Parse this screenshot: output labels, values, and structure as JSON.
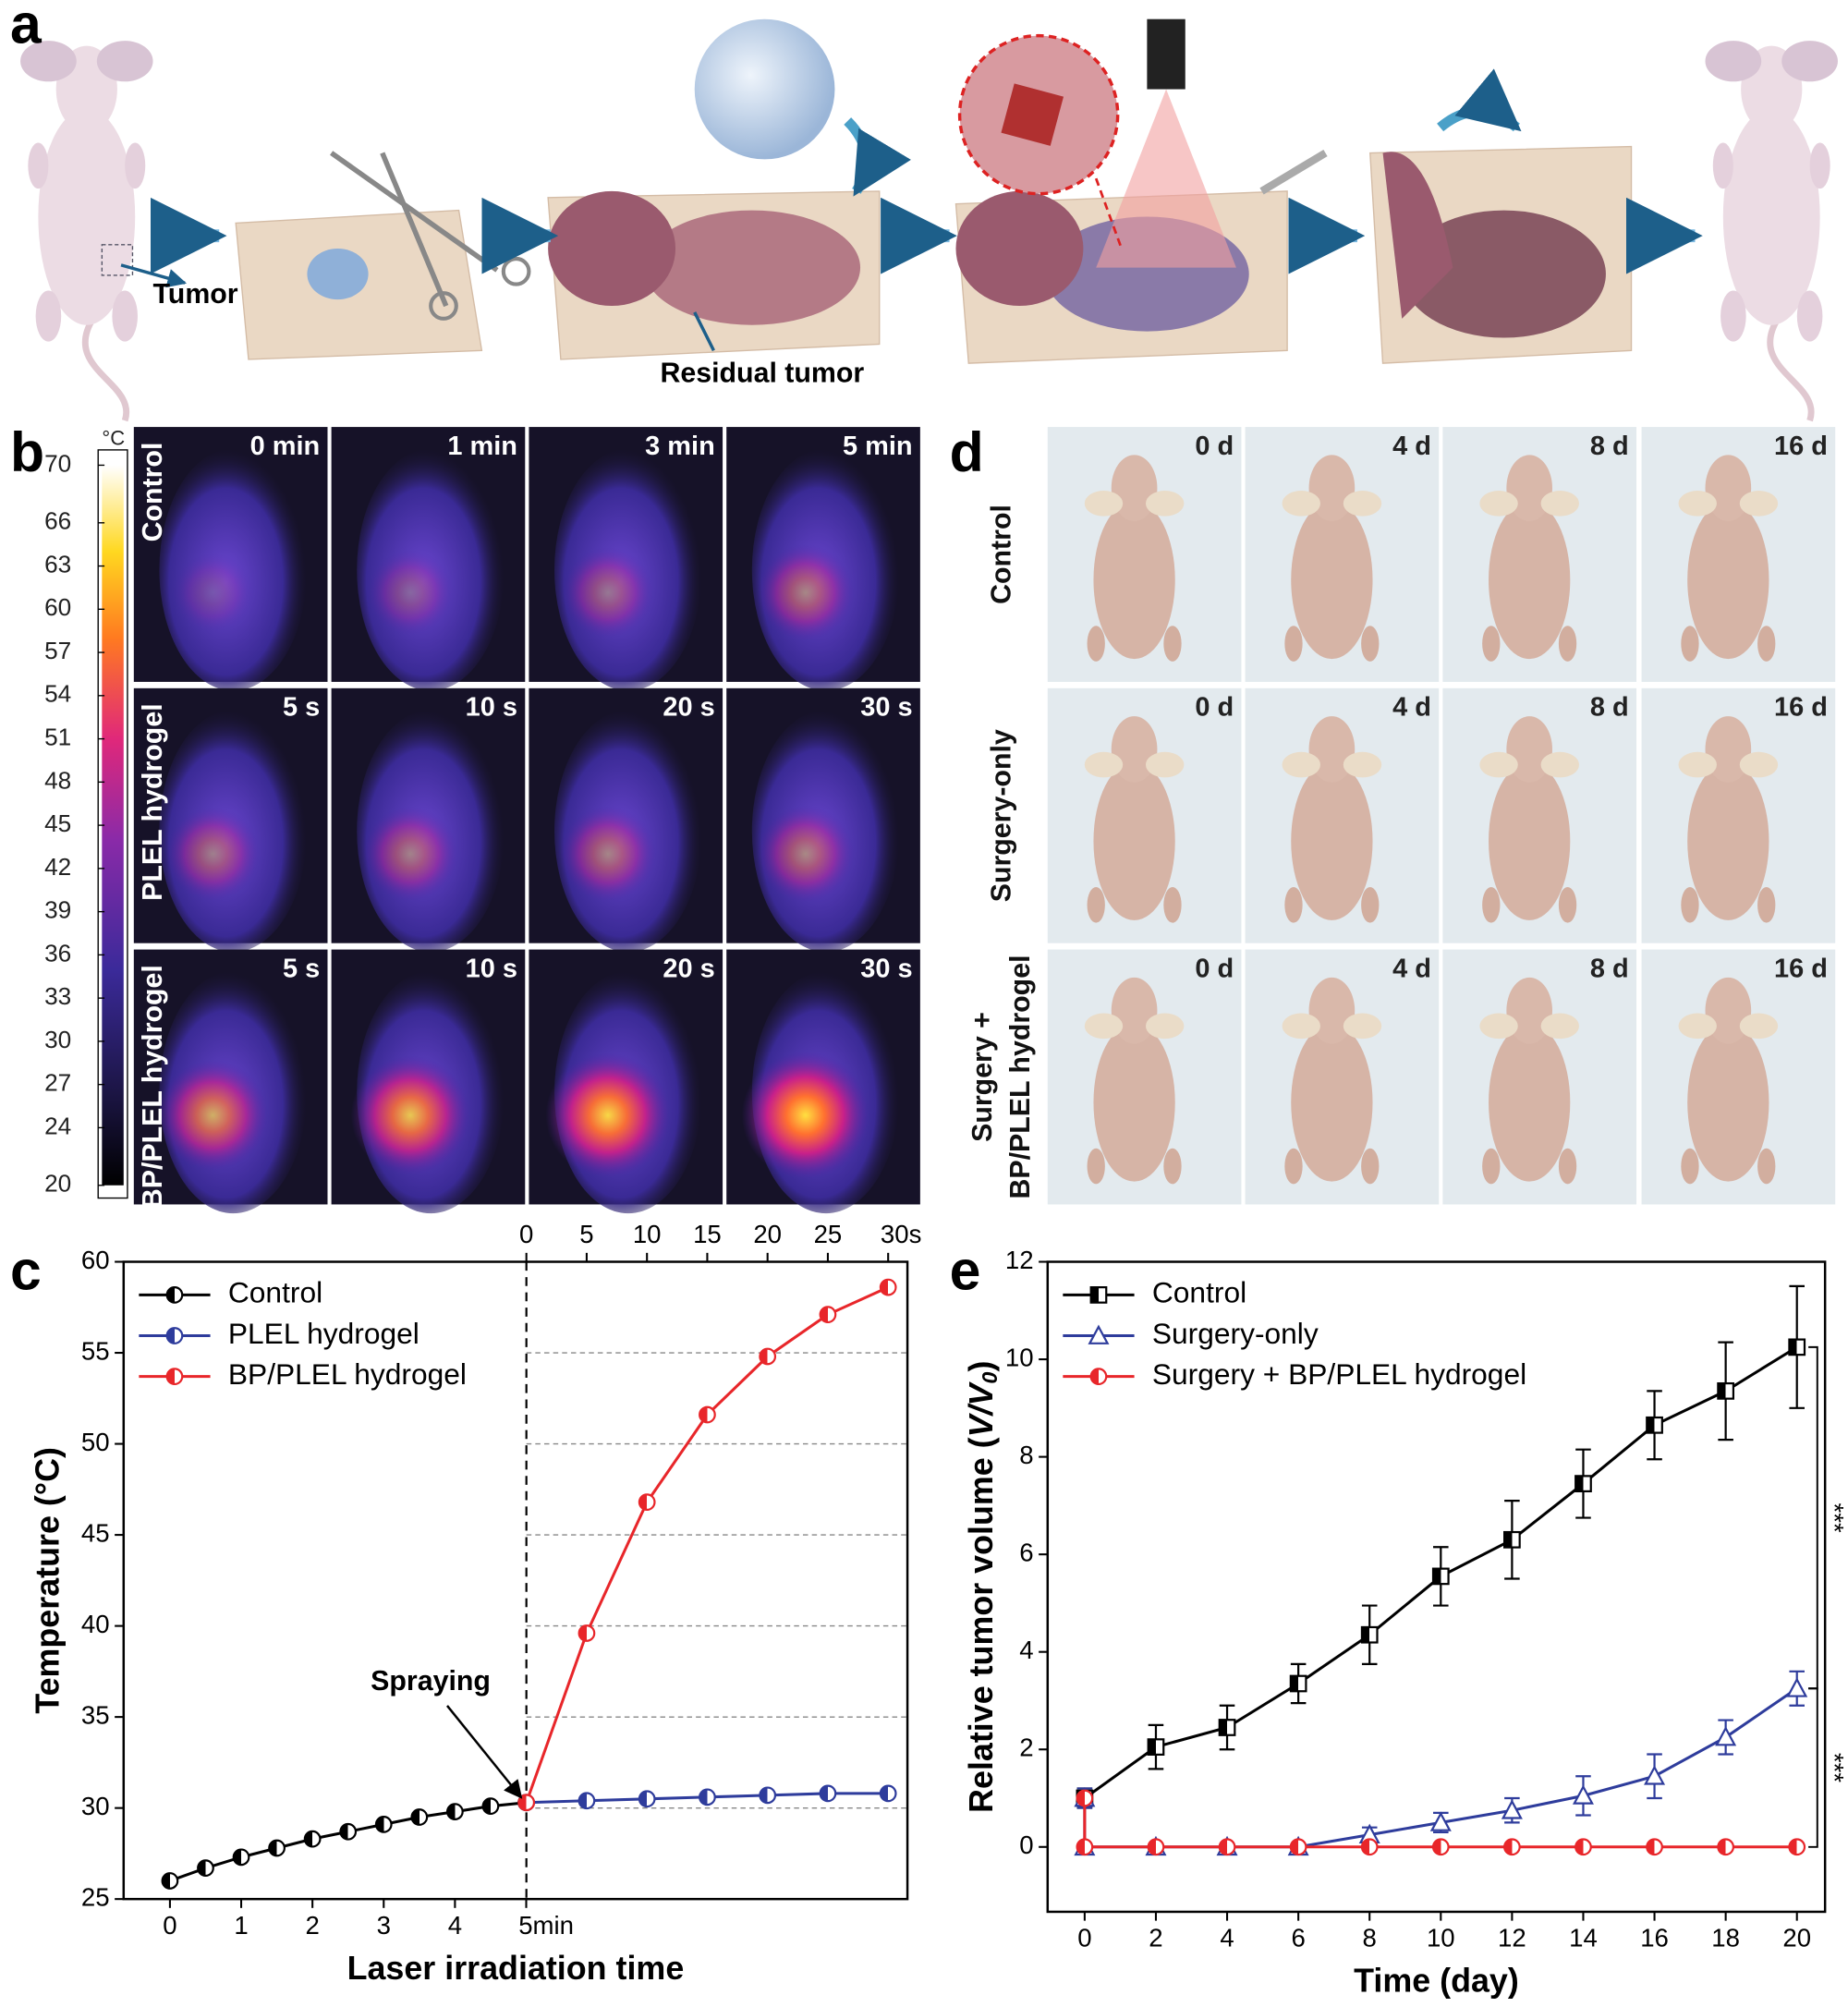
{
  "panel_labels": [
    "a",
    "b",
    "c",
    "d",
    "e"
  ],
  "panel_a": {
    "labels": [
      "Tumor",
      "Residual tumor"
    ]
  },
  "panel_b": {
    "colorbar": {
      "unit": "°C",
      "lim": [
        20,
        70
      ],
      "ticks": [
        70,
        66,
        63,
        60,
        57,
        54,
        51,
        48,
        45,
        42,
        39,
        36,
        33,
        30,
        27,
        24,
        20
      ]
    },
    "rows": [
      {
        "label": "Control",
        "times": [
          "0 min",
          "1 min",
          "3 min",
          "5 min"
        ]
      },
      {
        "label": "PLEL hydrogel",
        "times": [
          "5 s",
          "10 s",
          "20 s",
          "30 s"
        ]
      },
      {
        "label": "BP/PLEL hydrogel",
        "times": [
          "5 s",
          "10 s",
          "20 s",
          "30 s"
        ]
      }
    ]
  },
  "panel_d": {
    "rows": [
      {
        "label": [
          "Control"
        ],
        "days": [
          "0 d",
          "4 d",
          "8 d",
          "16 d"
        ]
      },
      {
        "label": [
          "Surgery-only"
        ],
        "days": [
          "0 d",
          "4 d",
          "8 d",
          "16 d"
        ]
      },
      {
        "label": [
          "Surgery +",
          "BP/PLEL hydrogel"
        ],
        "days": [
          "0 d",
          "4 d",
          "8 d",
          "16 d"
        ]
      }
    ]
  },
  "chart_data": [
    {
      "type": "line",
      "xlabel": "Laser irradiation time",
      "ylabel": "Temperature (°C)",
      "xlim": [
        -0.65,
        10.35
      ],
      "xticks": [
        0,
        1,
        2,
        3,
        4,
        {
          "value": 5,
          "label": "5min"
        }
      ],
      "x2lim": [
        -33.4,
        31.6
      ],
      "x2ticks": [
        0,
        5,
        10,
        15,
        20,
        25,
        {
          "value": 30,
          "label": "30s"
        }
      ],
      "ylim": [
        25,
        60
      ],
      "yticks": [
        25,
        30,
        35,
        40,
        45,
        50,
        55,
        60
      ],
      "grid": true,
      "legend": "upper left",
      "annotation": "Spraying",
      "series": [
        {
          "name": "Control",
          "color": "#000000",
          "marker": "circle",
          "x": [
            0,
            0.5,
            1,
            1.5,
            2,
            2.5,
            3,
            3.5,
            4,
            4.5,
            5
          ],
          "values": [
            26.0,
            26.7,
            27.3,
            27.8,
            28.3,
            28.7,
            29.1,
            29.5,
            29.8,
            30.1,
            30.3
          ]
        },
        {
          "name": "PLEL hydrogel",
          "color": "#2e3c9c",
          "marker": "circle",
          "axis": "x2",
          "x": [
            0,
            5,
            10,
            15,
            20,
            25,
            30
          ],
          "values": [
            30.3,
            30.4,
            30.5,
            30.6,
            30.7,
            30.8,
            30.8
          ]
        },
        {
          "name": "BP/PLEL hydrogel",
          "color": "#e8262a",
          "marker": "circle",
          "axis": "x2",
          "x": [
            0,
            5,
            10,
            15,
            20,
            25,
            30
          ],
          "values": [
            30.3,
            39.6,
            46.8,
            51.6,
            54.8,
            57.1,
            58.6
          ]
        }
      ]
    },
    {
      "type": "line",
      "xlabel": "Time (day)",
      "ylabel_parts": [
        "Relative tumor volume (",
        "V/V",
        "0",
        ")"
      ],
      "xlim": [
        -1.04,
        20.79
      ],
      "xticks": [
        0,
        2,
        4,
        6,
        8,
        10,
        12,
        14,
        16,
        18,
        20
      ],
      "ylim": [
        -1.33,
        12
      ],
      "yticks": [
        0,
        2,
        4,
        6,
        8,
        10,
        12
      ],
      "grid": false,
      "legend": "upper left",
      "significance": [
        "***",
        "***"
      ],
      "series": [
        {
          "name": "Control",
          "color": "#000000",
          "marker": "square",
          "x": [
            0,
            2,
            4,
            6,
            8,
            10,
            12,
            14,
            16,
            18,
            20
          ],
          "values": [
            1.0,
            2.05,
            2.45,
            3.35,
            4.35,
            5.55,
            6.3,
            7.45,
            8.65,
            9.35,
            10.25
          ],
          "errors": [
            0.2,
            0.45,
            0.45,
            0.4,
            0.6,
            0.6,
            0.8,
            0.7,
            0.7,
            1.0,
            1.25
          ]
        },
        {
          "name": "Surgery-only",
          "color": "#2e3c9c",
          "marker": "triangle",
          "x": [
            0,
            0,
            2,
            4,
            6,
            8,
            10,
            12,
            14,
            16,
            18,
            20
          ],
          "values": [
            1.0,
            0,
            0,
            0,
            0,
            0.25,
            0.5,
            0.75,
            1.05,
            1.45,
            2.25,
            3.25
          ],
          "errors": [
            0.2,
            0,
            0,
            0,
            0,
            0.15,
            0.2,
            0.25,
            0.4,
            0.45,
            0.35,
            0.35
          ]
        },
        {
          "name": "Surgery + BP/PLEL hydrogel",
          "color": "#e8262a",
          "marker": "circle",
          "x": [
            0,
            0,
            2,
            4,
            6,
            8,
            10,
            12,
            14,
            16,
            18,
            20
          ],
          "values": [
            1.0,
            0,
            0,
            0,
            0,
            0,
            0,
            0,
            0,
            0,
            0,
            0
          ]
        }
      ]
    }
  ]
}
